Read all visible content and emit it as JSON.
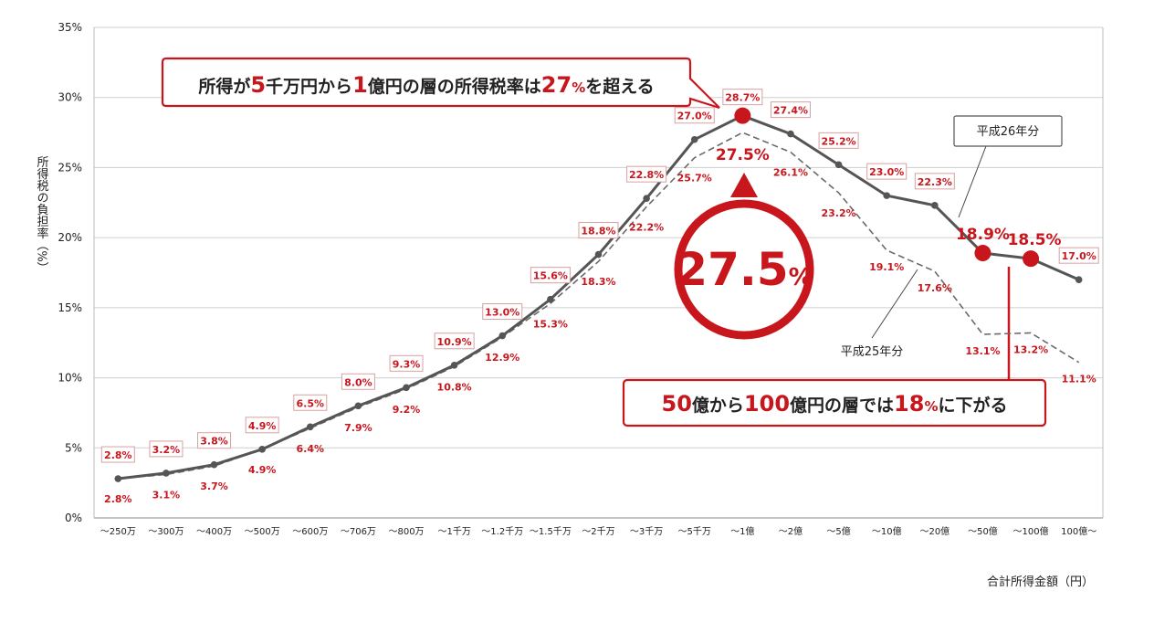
{
  "chart_data": {
    "type": "line",
    "xlabel": "合計所得金額（円）",
    "ylabel": "所得税の負担率（%）",
    "ylim": [
      0,
      35
    ],
    "yticks": [
      "0%",
      "5%",
      "10%",
      "15%",
      "20%",
      "25%",
      "30%",
      "35%"
    ],
    "categories": [
      "～250万",
      "～300万",
      "～400万",
      "～500万",
      "～600万",
      "～706万",
      "～800万",
      "～1千万",
      "～1.2千万",
      "～1.5千万",
      "～2千万",
      "～3千万",
      "～5千万",
      "～1億",
      "～2億",
      "～5億",
      "～10億",
      "～20億",
      "～50億",
      "～100億",
      "100億～"
    ],
    "series": [
      {
        "name": "平成26年分",
        "style": "solid",
        "values": [
          2.8,
          3.2,
          3.8,
          4.9,
          6.5,
          8.0,
          9.3,
          10.9,
          13.0,
          15.6,
          18.8,
          22.8,
          27.0,
          28.7,
          27.4,
          25.2,
          23.0,
          22.3,
          18.9,
          18.5,
          17.0
        ],
        "labels": [
          "2.8%",
          "3.2%",
          "3.8%",
          "4.9%",
          "6.5%",
          "8.0%",
          "9.3%",
          "10.9%",
          "13.0%",
          "15.6%",
          "18.8%",
          "22.8%",
          "27.0%",
          "28.7%",
          "27.4%",
          "25.2%",
          "23.0%",
          "22.3%",
          "18.9%",
          "18.5%",
          "17.0%"
        ]
      },
      {
        "name": "平成25年分",
        "style": "dashed",
        "values": [
          2.8,
          3.1,
          3.7,
          4.9,
          6.4,
          7.9,
          9.2,
          10.8,
          12.9,
          15.3,
          18.3,
          22.2,
          25.7,
          27.5,
          26.1,
          23.2,
          19.1,
          17.6,
          13.1,
          13.2,
          11.1
        ],
        "labels": [
          "2.8%",
          "3.1%",
          "3.7%",
          "4.9%",
          "6.4%",
          "7.9%",
          "9.2%",
          "10.8%",
          "12.9%",
          "15.3%",
          "18.3%",
          "22.2%",
          "25.7%",
          "27.5%",
          "26.1%",
          "23.2%",
          "19.1%",
          "17.6%",
          "13.1%",
          "13.2%",
          "11.1%"
        ]
      }
    ],
    "highlight_circle": {
      "value": "27.5",
      "unit": "%"
    },
    "annotations": {
      "top": {
        "p1": "所得が",
        "n1": "5",
        "p2": "千万円から",
        "n2": "1",
        "p3": "億円の層の所得税率は",
        "n3": "27",
        "pct": "%",
        "p4": "を超える"
      },
      "bottom": {
        "n1": "50",
        "p1": "億から",
        "n2": "100",
        "p2": "億円の層では",
        "n3": "18",
        "pct": "%",
        "p3": "に下がる"
      }
    }
  }
}
